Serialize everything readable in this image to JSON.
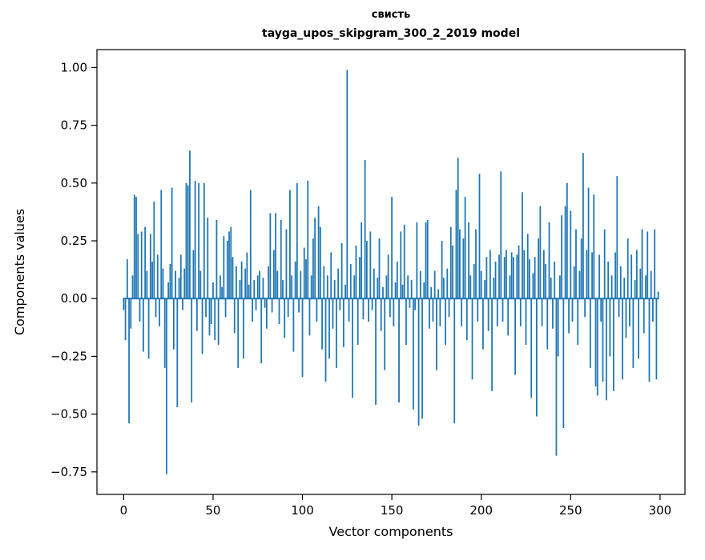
{
  "chart_data": {
    "type": "bar",
    "title": "свисть",
    "subtitle": "tayga_upos_skipgram_300_2_2019 model",
    "xlabel": "Vector components",
    "ylabel": "Components values",
    "bar_color": "#1f77b4",
    "xlim": [
      -14.95,
      313.95
    ],
    "ylim": [
      -0.8475,
      1.0775
    ],
    "xticks": [
      0,
      50,
      100,
      150,
      200,
      250,
      300
    ],
    "yticks": [
      1.0,
      0.75,
      0.5,
      0.25,
      0.0,
      -0.25,
      -0.5,
      -0.75
    ],
    "n_components": 300,
    "bar_width": 0.8,
    "grid": false,
    "legend": "none",
    "values": [
      -0.05,
      -0.18,
      0.17,
      -0.54,
      -0.13,
      0.1,
      0.45,
      0.44,
      0.28,
      -0.1,
      0.29,
      -0.23,
      0.31,
      0.12,
      -0.26,
      0.28,
      0.16,
      0.42,
      -0.08,
      0.19,
      -0.12,
      0.47,
      0.13,
      -0.3,
      -0.76,
      0.07,
      0.15,
      0.48,
      -0.22,
      0.12,
      -0.47,
      0.09,
      0.19,
      -0.05,
      0.13,
      0.5,
      0.49,
      0.64,
      -0.45,
      0.21,
      0.51,
      -0.14,
      0.5,
      0.12,
      -0.24,
      0.5,
      -0.08,
      0.35,
      -0.16,
      -0.11,
      0.07,
      -0.18,
      0.34,
      -0.2,
      0.1,
      0.05,
      0.27,
      -0.08,
      0.25,
      0.29,
      0.31,
      0.18,
      -0.15,
      0.14,
      -0.3,
      0.08,
      0.16,
      -0.26,
      0.13,
      0.2,
      0.06,
      0.47,
      -0.1,
      0.08,
      -0.05,
      0.1,
      0.12,
      -0.28,
      0.09,
      -0.04,
      -0.13,
      0.14,
      0.37,
      -0.06,
      0.21,
      0.37,
      0.12,
      -0.11,
      0.34,
      0.08,
      -0.17,
      0.3,
      -0.08,
      0.47,
      0.1,
      -0.23,
      0.16,
      0.5,
      -0.06,
      0.12,
      -0.34,
      0.22,
      0.17,
      0.51,
      -0.16,
      0.1,
      0.26,
      0.35,
      -0.1,
      0.4,
      0.31,
      -0.22,
      0.14,
      -0.36,
      0.1,
      -0.26,
      0.2,
      -0.13,
      0.08,
      -0.3,
      0.13,
      -0.05,
      0.24,
      -0.21,
      0.06,
      0.99,
      -0.1,
      0.15,
      -0.43,
      0.1,
      0.23,
      -0.2,
      0.18,
      0.33,
      -0.09,
      0.6,
      0.25,
      -0.1,
      0.29,
      -0.05,
      0.13,
      -0.46,
      0.09,
      0.26,
      -0.14,
      0.05,
      -0.31,
      0.1,
      0.19,
      -0.08,
      0.44,
      -0.12,
      0.07,
      0.16,
      -0.45,
      0.29,
      0.06,
      0.32,
      -0.2,
      0.1,
      -0.04,
      0.08,
      -0.48,
      -0.05,
      0.33,
      -0.55,
      0.12,
      -0.52,
      0.07,
      0.33,
      0.34,
      -0.13,
      0.05,
      -0.1,
      0.12,
      -0.31,
      0.04,
      -0.12,
      0.25,
      0.09,
      -0.2,
      0.13,
      -0.08,
      0.31,
      0.23,
      -0.54,
      0.47,
      0.61,
      0.3,
      -0.12,
      0.26,
      0.44,
      -0.18,
      0.33,
      0.1,
      -0.35,
      0.15,
      0.3,
      -0.1,
      0.54,
      0.12,
      -0.22,
      0.08,
      0.18,
      -0.14,
      0.21,
      -0.4,
      0.09,
      0.16,
      -0.12,
      0.19,
      0.55,
      -0.1,
      0.18,
      0.21,
      -0.16,
      0.1,
      0.2,
      0.18,
      -0.33,
      0.19,
      0.23,
      -0.12,
      0.46,
      0.21,
      -0.2,
      0.28,
      0.17,
      -0.43,
      0.11,
      0.18,
      -0.51,
      0.26,
      0.4,
      -0.12,
      0.21,
      0.15,
      -0.22,
      0.33,
      0.09,
      -0.13,
      0.16,
      -0.68,
      -0.25,
      0.1,
      0.36,
      -0.56,
      0.4,
      0.5,
      -0.15,
      0.38,
      -0.1,
      0.14,
      0.3,
      -0.2,
      0.12,
      0.26,
      0.63,
      -0.08,
      0.21,
      0.48,
      -0.3,
      0.2,
      0.45,
      -0.38,
      -0.42,
      0.19,
      -0.1,
      -0.36,
      0.3,
      -0.44,
      0.16,
      -0.25,
      0.1,
      -0.4,
      0.2,
      0.53,
      -0.08,
      0.14,
      -0.35,
      0.09,
      -0.17,
      0.26,
      -0.12,
      0.19,
      -0.3,
      0.08,
      0.21,
      -0.26,
      0.13,
      0.3,
      -0.15,
      0.1,
      0.29,
      -0.36,
      0.12,
      -0.1,
      0.3,
      -0.35,
      0.03
    ]
  }
}
